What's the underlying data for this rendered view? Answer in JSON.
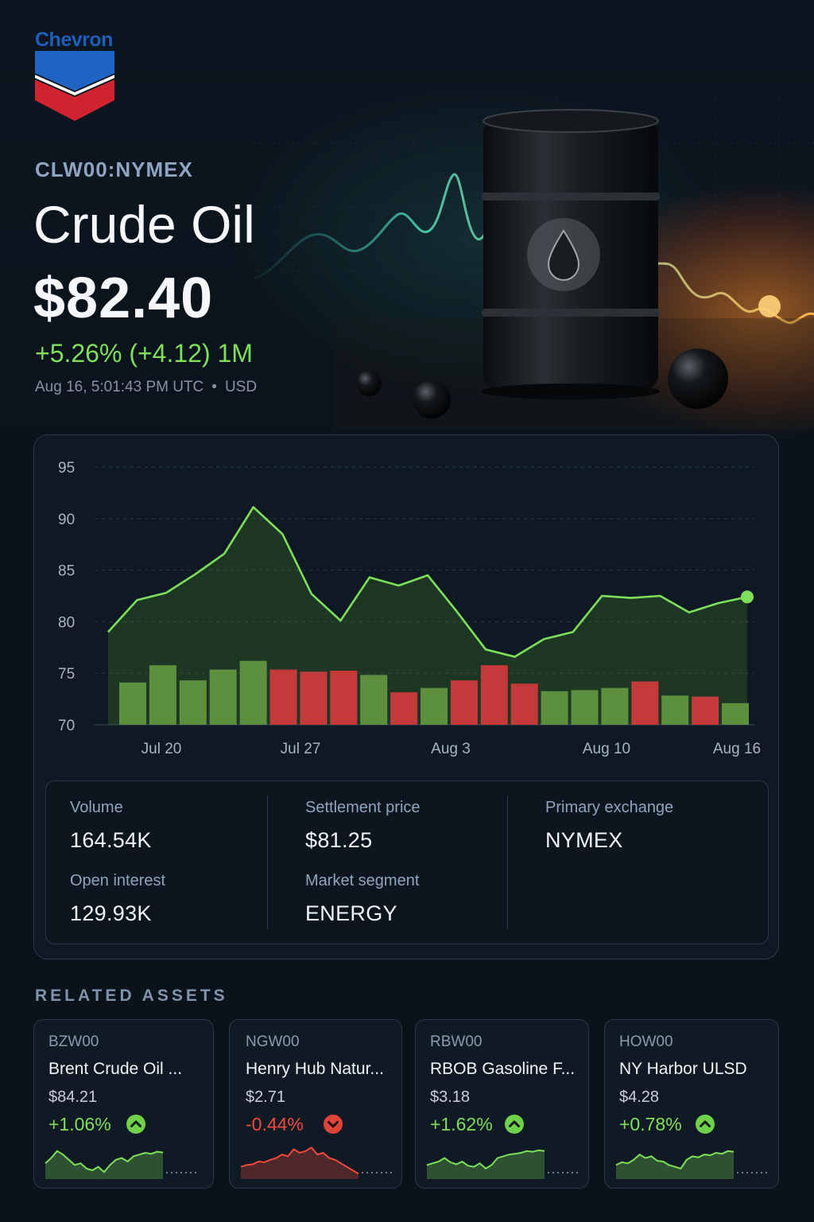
{
  "brand": {
    "name": "Chevron"
  },
  "quote": {
    "ticker": "CLW00:NYMEX",
    "title": "Crude Oil",
    "price": "$82.40",
    "change": "+5.26% (+4.12) 1M",
    "timestamp": "Aug 16, 5:01:43 PM UTC",
    "currency": "USD"
  },
  "colors": {
    "up": "#7ee05a",
    "down": "#ef4a3c",
    "volume_up": "#5c8f3e",
    "volume_down": "#c43a3a"
  },
  "chart_data": {
    "type": "line",
    "ylim": [
      70,
      95
    ],
    "yticks": [
      "95",
      "90",
      "85",
      "80",
      "75",
      "70"
    ],
    "xtick_labels": [
      "Jul 20",
      "Jul 27",
      "Aug 3",
      "Aug 10",
      "Aug 16"
    ],
    "price_series": [
      79.0,
      82.1,
      82.8,
      84.6,
      86.6,
      91.1,
      88.5,
      82.7,
      80.1,
      84.3,
      83.5,
      84.5,
      81.0,
      77.3,
      76.6,
      78.3,
      79.0,
      82.5,
      82.3,
      82.5,
      80.9,
      81.8,
      82.4
    ],
    "volume_bars": [
      {
        "h": 0.39,
        "dir": "up"
      },
      {
        "h": 0.55,
        "dir": "up"
      },
      {
        "h": 0.41,
        "dir": "up"
      },
      {
        "h": 0.51,
        "dir": "up"
      },
      {
        "h": 0.59,
        "dir": "up"
      },
      {
        "h": 0.51,
        "dir": "down"
      },
      {
        "h": 0.49,
        "dir": "down"
      },
      {
        "h": 0.5,
        "dir": "down"
      },
      {
        "h": 0.46,
        "dir": "up"
      },
      {
        "h": 0.3,
        "dir": "down"
      },
      {
        "h": 0.34,
        "dir": "up"
      },
      {
        "h": 0.41,
        "dir": "down"
      },
      {
        "h": 0.55,
        "dir": "down"
      },
      {
        "h": 0.38,
        "dir": "down"
      },
      {
        "h": 0.31,
        "dir": "up"
      },
      {
        "h": 0.32,
        "dir": "up"
      },
      {
        "h": 0.34,
        "dir": "up"
      },
      {
        "h": 0.4,
        "dir": "down"
      },
      {
        "h": 0.27,
        "dir": "up"
      },
      {
        "h": 0.26,
        "dir": "down"
      },
      {
        "h": 0.2,
        "dir": "up"
      }
    ],
    "grid": true
  },
  "stats": {
    "volume_label": "Volume",
    "volume_value": "164.54K",
    "open_interest_label": "Open interest",
    "open_interest_value": "129.93K",
    "settlement_label": "Settlement price",
    "settlement_value": "$81.25",
    "segment_label": "Market segment",
    "segment_value": "ENERGY",
    "exchange_label": "Primary exchange",
    "exchange_value": "NYMEX"
  },
  "related": {
    "title": "RELATED ASSETS",
    "assets": [
      {
        "code": "BZW00",
        "name": "Brent Crude Oil ...",
        "price": "$84.21",
        "change": "+1.06%",
        "dir": "up",
        "spark": [
          0.45,
          0.6,
          0.8,
          0.7,
          0.55,
          0.4,
          0.45,
          0.3,
          0.25,
          0.35,
          0.2,
          0.4,
          0.55,
          0.6,
          0.5,
          0.65,
          0.7,
          0.75,
          0.72,
          0.78,
          0.76
        ]
      },
      {
        "code": "NGW00",
        "name": "Henry Hub Natur...",
        "price": "$2.71",
        "change": "-0.44%",
        "dir": "down",
        "spark": [
          0.35,
          0.4,
          0.42,
          0.5,
          0.48,
          0.55,
          0.6,
          0.7,
          0.65,
          0.85,
          0.75,
          0.8,
          0.9,
          0.7,
          0.75,
          0.6,
          0.55,
          0.45,
          0.35,
          0.25,
          0.15
        ]
      },
      {
        "code": "RBW00",
        "name": "RBOB Gasoline F...",
        "price": "$3.18",
        "change": "+1.62%",
        "dir": "up",
        "spark": [
          0.4,
          0.45,
          0.5,
          0.6,
          0.48,
          0.42,
          0.5,
          0.38,
          0.35,
          0.45,
          0.3,
          0.4,
          0.6,
          0.65,
          0.7,
          0.72,
          0.75,
          0.8,
          0.78,
          0.82,
          0.8
        ]
      },
      {
        "code": "HOW00",
        "name": "NY Harbor ULSD",
        "price": "$4.28",
        "change": "+0.78%",
        "dir": "up",
        "spark": [
          0.4,
          0.48,
          0.45,
          0.55,
          0.7,
          0.6,
          0.65,
          0.52,
          0.5,
          0.4,
          0.35,
          0.3,
          0.55,
          0.65,
          0.62,
          0.7,
          0.68,
          0.75,
          0.72,
          0.8,
          0.78
        ]
      }
    ]
  }
}
